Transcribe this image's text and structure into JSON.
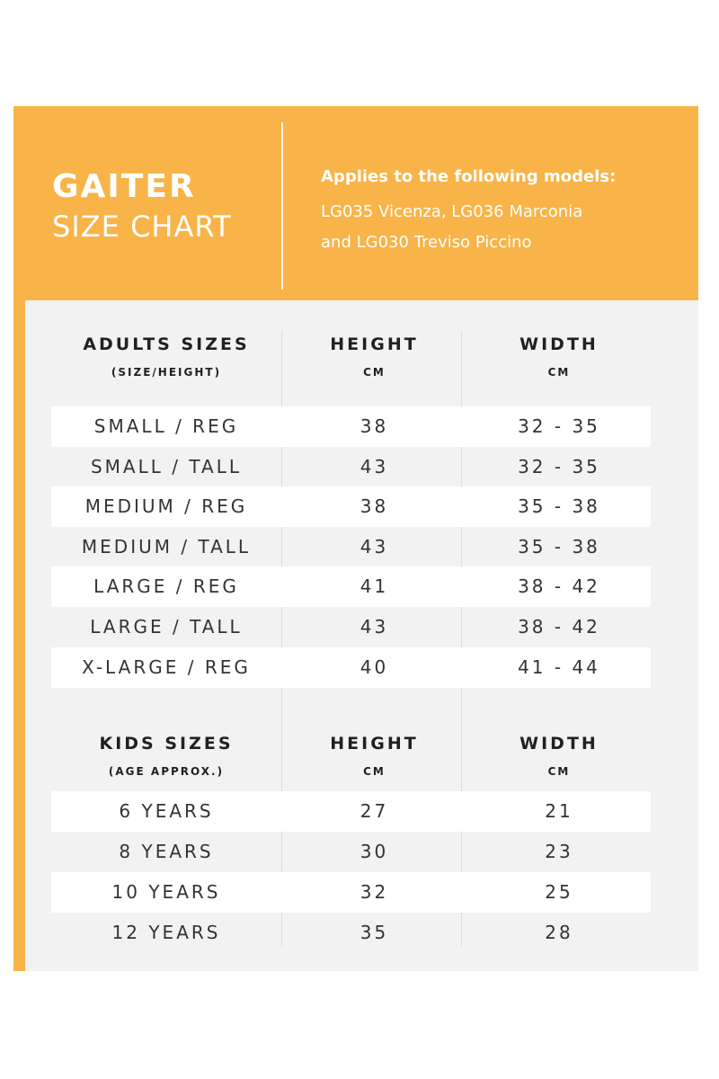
{
  "header": {
    "title_main": "GAITER",
    "title_sub": "SIZE CHART",
    "applies_heading": "Applies to the following models:",
    "models_line1": "LG035 Vicenza, LG036 Marconia",
    "models_line2": "and LG030 Treviso Piccino"
  },
  "adults": {
    "col1_label": "ADULTS SIZES",
    "col1_sub": "(SIZE/HEIGHT)",
    "col2_label": "HEIGHT",
    "col2_sub": "CM",
    "col3_label": "WIDTH",
    "col3_sub": "CM",
    "rows": [
      {
        "size": "SMALL / REG",
        "height": "38",
        "width": "32 - 35"
      },
      {
        "size": "SMALL / TALL",
        "height": "43",
        "width": "32 - 35"
      },
      {
        "size": "MEDIUM / REG",
        "height": "38",
        "width": "35 - 38"
      },
      {
        "size": "MEDIUM / TALL",
        "height": "43",
        "width": "35 - 38"
      },
      {
        "size": "LARGE / REG",
        "height": "41",
        "width": "38 - 42"
      },
      {
        "size": "LARGE / TALL",
        "height": "43",
        "width": "38 - 42"
      },
      {
        "size": "X-LARGE / REG",
        "height": "40",
        "width": "41 - 44"
      }
    ]
  },
  "kids": {
    "col1_label": "KIDS SIZES",
    "col1_sub": "(AGE APPROX.)",
    "col2_label": "HEIGHT",
    "col2_sub": "CM",
    "col3_label": "WIDTH",
    "col3_sub": "CM",
    "rows": [
      {
        "size": "6 YEARS",
        "height": "27",
        "width": "21"
      },
      {
        "size": "8 YEARS",
        "height": "30",
        "width": "23"
      },
      {
        "size": "10 YEARS",
        "height": "32",
        "width": "25"
      },
      {
        "size": "12 YEARS",
        "height": "35",
        "width": "28"
      }
    ]
  },
  "colors": {
    "accent": "#f8b448",
    "panel": "#f2f2f3",
    "stripe": "#ffffff",
    "text": "#231f20"
  }
}
